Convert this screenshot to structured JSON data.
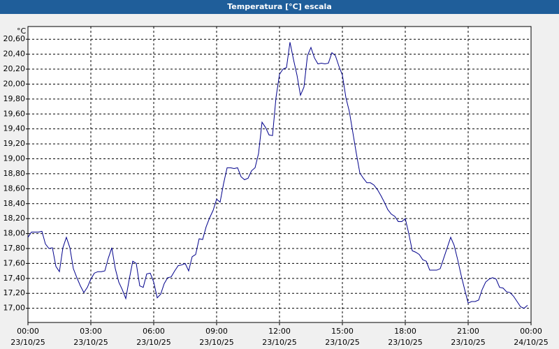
{
  "chart_data": {
    "type": "line",
    "title": "Temperatura [°C] escala",
    "y_unit": "°C",
    "x": [
      0,
      10,
      20,
      30,
      40,
      50,
      60,
      70,
      80,
      90,
      100,
      110,
      120,
      130,
      140,
      150,
      160,
      170,
      180,
      190,
      200,
      210,
      220,
      230,
      240,
      250,
      260,
      270,
      280,
      290,
      300,
      310,
      320,
      330,
      340,
      350,
      360,
      370,
      380,
      390,
      400,
      410,
      420,
      430,
      440,
      450,
      460,
      470,
      480,
      490,
      500,
      510,
      520,
      530,
      540,
      550,
      560,
      570,
      580,
      590,
      600,
      610,
      620,
      630,
      640,
      650,
      660,
      670,
      680,
      690,
      700,
      710,
      720,
      730,
      740,
      750,
      760,
      770,
      780,
      790,
      800,
      810,
      820,
      830,
      840,
      850,
      860,
      870,
      880,
      890,
      900,
      910,
      920,
      930,
      940,
      950,
      960,
      970,
      980,
      990,
      1000,
      1010,
      1020,
      1030,
      1040,
      1050,
      1060,
      1070,
      1080,
      1090,
      1100,
      1110,
      1120,
      1130,
      1140,
      1150,
      1160,
      1170,
      1180,
      1190,
      1200,
      1210,
      1220,
      1230,
      1240,
      1250,
      1260,
      1270,
      1280,
      1290,
      1300,
      1310,
      1320,
      1330,
      1340,
      1350,
      1360,
      1370,
      1380,
      1390,
      1400,
      1410,
      1420,
      1430
    ],
    "series": [
      {
        "name": "Temperatura",
        "color": "#00008b",
        "values": [
          17.95,
          18.02,
          18.02,
          18.02,
          18.03,
          17.86,
          17.8,
          17.81,
          17.56,
          17.49,
          17.81,
          17.95,
          17.81,
          17.53,
          17.41,
          17.3,
          17.21,
          17.28,
          17.39,
          17.47,
          17.49,
          17.49,
          17.5,
          17.67,
          17.81,
          17.53,
          17.35,
          17.25,
          17.13,
          17.39,
          17.63,
          17.6,
          17.3,
          17.28,
          17.46,
          17.47,
          17.35,
          17.14,
          17.19,
          17.33,
          17.41,
          17.42,
          17.5,
          17.57,
          17.58,
          17.6,
          17.5,
          17.69,
          17.72,
          17.93,
          17.92,
          18.09,
          18.21,
          18.31,
          18.46,
          18.42,
          18.67,
          18.88,
          18.88,
          18.87,
          18.88,
          18.76,
          18.72,
          18.74,
          18.84,
          18.88,
          19.07,
          19.49,
          19.42,
          19.32,
          19.31,
          19.82,
          20.13,
          20.2,
          20.22,
          20.56,
          20.33,
          20.12,
          19.85,
          19.96,
          20.38,
          20.49,
          20.35,
          20.27,
          20.28,
          20.27,
          20.28,
          20.42,
          20.38,
          20.24,
          20.12,
          19.82,
          19.63,
          19.35,
          19.07,
          18.81,
          18.74,
          18.68,
          18.68,
          18.65,
          18.59,
          18.51,
          18.42,
          18.32,
          18.26,
          18.23,
          18.16,
          18.16,
          18.2,
          18.0,
          17.77,
          17.75,
          17.72,
          17.65,
          17.63,
          17.51,
          17.51,
          17.51,
          17.53,
          17.67,
          17.81,
          17.95,
          17.84,
          17.65,
          17.44,
          17.25,
          17.07,
          17.09,
          17.09,
          17.11,
          17.25,
          17.35,
          17.39,
          17.41,
          17.39,
          17.28,
          17.27,
          17.22,
          17.21,
          17.16,
          17.09,
          17.02,
          17.0,
          17.04
        ]
      }
    ],
    "xlim": [
      0,
      1440
    ],
    "xticks": [
      {
        "value": 0,
        "label": "00:00",
        "date": "23/10/25"
      },
      {
        "value": 180,
        "label": "03:00",
        "date": "23/10/25"
      },
      {
        "value": 360,
        "label": "06:00",
        "date": "23/10/25"
      },
      {
        "value": 540,
        "label": "09:00",
        "date": "23/10/25"
      },
      {
        "value": 720,
        "label": "12:00",
        "date": "23/10/25"
      },
      {
        "value": 900,
        "label": "15:00",
        "date": "23/10/25"
      },
      {
        "value": 1080,
        "label": "18:00",
        "date": "23/10/25"
      },
      {
        "value": 1260,
        "label": "21:00",
        "date": "23/10/25"
      },
      {
        "value": 1440,
        "label": "00:00",
        "date": "24/10/25"
      }
    ],
    "ylim": [
      16.81,
      20.77
    ],
    "yticks": [
      {
        "value": 17.0,
        "label": "17,00"
      },
      {
        "value": 17.2,
        "label": "17,20"
      },
      {
        "value": 17.4,
        "label": "17,40"
      },
      {
        "value": 17.6,
        "label": "17,60"
      },
      {
        "value": 17.8,
        "label": "17,80"
      },
      {
        "value": 18.0,
        "label": "18,00"
      },
      {
        "value": 18.2,
        "label": "18,20"
      },
      {
        "value": 18.4,
        "label": "18,40"
      },
      {
        "value": 18.6,
        "label": "18,60"
      },
      {
        "value": 18.8,
        "label": "18,80"
      },
      {
        "value": 19.0,
        "label": "19,00"
      },
      {
        "value": 19.2,
        "label": "19,20"
      },
      {
        "value": 19.4,
        "label": "19,40"
      },
      {
        "value": 19.6,
        "label": "19,60"
      },
      {
        "value": 19.8,
        "label": "19,80"
      },
      {
        "value": 20.0,
        "label": "20,00"
      },
      {
        "value": 20.2,
        "label": "20,20"
      },
      {
        "value": 20.4,
        "label": "20,40"
      },
      {
        "value": 20.6,
        "label": "20,60"
      }
    ],
    "grid": true
  }
}
